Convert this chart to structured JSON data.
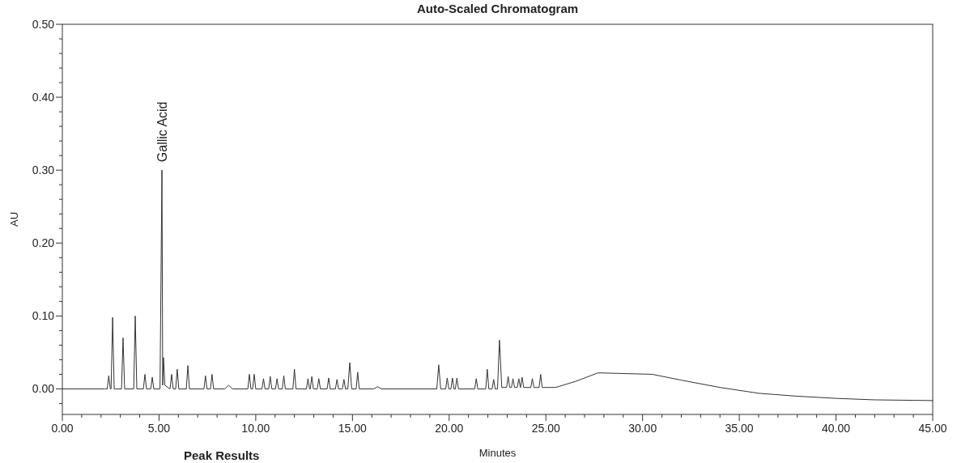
{
  "chart_data": {
    "type": "line",
    "title": "Auto-Scaled Chromatogram",
    "xlabel": "Minutes",
    "ylabel": "AU",
    "annotations": [
      {
        "text": "Gallic Acid",
        "x": 5.15,
        "y": 0.3
      },
      "Peak Results"
    ],
    "xlim": [
      0,
      45
    ],
    "ylim": [
      -0.035,
      0.5
    ],
    "xticks": [
      {
        "value": 0,
        "label": "0.00"
      },
      {
        "value": 1,
        "label": null
      },
      {
        "value": 2,
        "label": null
      },
      {
        "value": 3,
        "label": null
      },
      {
        "value": 4,
        "label": null
      },
      {
        "value": 5,
        "label": "5.00"
      },
      {
        "value": 6,
        "label": null
      },
      {
        "value": 7,
        "label": null
      },
      {
        "value": 8,
        "label": null
      },
      {
        "value": 9,
        "label": null
      },
      {
        "value": 10,
        "label": "10.00"
      },
      {
        "value": 11,
        "label": null
      },
      {
        "value": 12,
        "label": null
      },
      {
        "value": 13,
        "label": null
      },
      {
        "value": 14,
        "label": null
      },
      {
        "value": 15,
        "label": "15.00"
      },
      {
        "value": 16,
        "label": null
      },
      {
        "value": 17,
        "label": null
      },
      {
        "value": 18,
        "label": null
      },
      {
        "value": 19,
        "label": null
      },
      {
        "value": 20,
        "label": "20.00"
      },
      {
        "value": 21,
        "label": null
      },
      {
        "value": 22,
        "label": null
      },
      {
        "value": 23,
        "label": null
      },
      {
        "value": 24,
        "label": null
      },
      {
        "value": 25,
        "label": "25.00"
      },
      {
        "value": 26,
        "label": null
      },
      {
        "value": 27,
        "label": null
      },
      {
        "value": 28,
        "label": null
      },
      {
        "value": 29,
        "label": null
      },
      {
        "value": 30,
        "label": "30.00"
      },
      {
        "value": 31,
        "label": null
      },
      {
        "value": 32,
        "label": null
      },
      {
        "value": 33,
        "label": null
      },
      {
        "value": 34,
        "label": null
      },
      {
        "value": 35,
        "label": "35.00"
      },
      {
        "value": 36,
        "label": null
      },
      {
        "value": 37,
        "label": null
      },
      {
        "value": 38,
        "label": null
      },
      {
        "value": 39,
        "label": null
      },
      {
        "value": 40,
        "label": "40.00"
      },
      {
        "value": 41,
        "label": null
      },
      {
        "value": 42,
        "label": null
      },
      {
        "value": 43,
        "label": null
      },
      {
        "value": 44,
        "label": null
      },
      {
        "value": 45,
        "label": "45.00"
      }
    ],
    "yticks": [
      {
        "value": -0.02,
        "label": null
      },
      {
        "value": 0,
        "label": "0.00"
      },
      {
        "value": 0.02,
        "label": null
      },
      {
        "value": 0.04,
        "label": null
      },
      {
        "value": 0.06,
        "label": null
      },
      {
        "value": 0.08,
        "label": null
      },
      {
        "value": 0.1,
        "label": "0.10"
      },
      {
        "value": 0.12,
        "label": null
      },
      {
        "value": 0.14,
        "label": null
      },
      {
        "value": 0.16,
        "label": null
      },
      {
        "value": 0.18,
        "label": null
      },
      {
        "value": 0.2,
        "label": "0.20"
      },
      {
        "value": 0.22,
        "label": null
      },
      {
        "value": 0.24,
        "label": null
      },
      {
        "value": 0.26,
        "label": null
      },
      {
        "value": 0.28,
        "label": null
      },
      {
        "value": 0.3,
        "label": "0.30"
      },
      {
        "value": 0.32,
        "label": null
      },
      {
        "value": 0.34,
        "label": null
      },
      {
        "value": 0.36,
        "label": null
      },
      {
        "value": 0.38,
        "label": null
      },
      {
        "value": 0.4,
        "label": "0.40"
      },
      {
        "value": 0.42,
        "label": null
      },
      {
        "value": 0.44,
        "label": null
      },
      {
        "value": 0.46,
        "label": null
      },
      {
        "value": 0.48,
        "label": null
      },
      {
        "value": 0.5,
        "label": "0.50"
      }
    ],
    "series": [
      {
        "color": "#333333",
        "x": [
          0,
          2.2,
          2.32,
          2.4,
          2.48,
          2.52,
          2.6,
          2.68,
          3.06,
          3.14,
          3.22,
          3.69,
          3.77,
          3.85,
          4.19,
          4.27,
          4.35,
          4.57,
          4.65,
          4.73,
          5.05,
          5.15,
          5.19,
          5.23,
          5.3,
          5.57,
          5.65,
          5.73,
          5.86,
          5.94,
          6.02,
          6.41,
          6.49,
          6.57,
          7.32,
          7.4,
          7.48,
          7.66,
          7.74,
          7.82,
          8.4,
          8.6,
          8.8,
          9.59,
          9.67,
          9.75,
          9.84,
          9.92,
          10.0,
          10.32,
          10.4,
          10.48,
          10.67,
          10.75,
          10.83,
          11.02,
          11.1,
          11.18,
          11.37,
          11.45,
          11.53,
          11.92,
          12.0,
          12.08,
          12.62,
          12.7,
          12.78,
          12.82,
          12.9,
          12.98,
          13.18,
          13.26,
          13.34,
          13.69,
          13.77,
          13.85,
          14.12,
          14.2,
          14.28,
          14.48,
          14.56,
          14.64,
          14.76,
          14.86,
          14.96,
          15.19,
          15.27,
          15.35,
          16.1,
          16.3,
          16.5,
          19.36,
          19.46,
          19.56,
          19.82,
          19.9,
          19.98,
          20.09,
          20.17,
          20.25,
          20.32,
          20.4,
          20.48,
          21.32,
          21.4,
          21.48,
          21.89,
          21.97,
          22.05,
          22.22,
          22.3,
          22.38,
          22.5,
          22.6,
          22.72,
          22.97,
          23.05,
          23.13,
          23.22,
          23.3,
          23.38,
          23.52,
          23.6,
          23.68,
          23.69,
          23.77,
          23.85,
          24.22,
          24.3,
          24.38,
          24.65,
          24.73,
          24.81,
          25.5,
          26.5,
          27.7,
          30.5,
          32,
          34,
          36,
          38,
          40,
          42,
          45
        ],
        "values": [
          0,
          0,
          0,
          0.018,
          0,
          0,
          0.098,
          0,
          0,
          0.07,
          0,
          0,
          0.1,
          0,
          0,
          0.02,
          0,
          0,
          0.016,
          0,
          0,
          0.3,
          0.005,
          0.043,
          0.005,
          0,
          0.02,
          0,
          0,
          0.027,
          0,
          0,
          0.032,
          0,
          0,
          0.018,
          0,
          0,
          0.02,
          0,
          0,
          0.005,
          0,
          0,
          0.02,
          0,
          0,
          0.02,
          0,
          0,
          0.014,
          0,
          0,
          0.017,
          0,
          0,
          0.014,
          0,
          0,
          0.018,
          0,
          0,
          0.027,
          0,
          0,
          0.014,
          0,
          0,
          0.017,
          0,
          0,
          0.014,
          0,
          0,
          0.015,
          0,
          0,
          0.013,
          0,
          0,
          0.013,
          0,
          0,
          0.036,
          0,
          0,
          0.023,
          0,
          0,
          0.003,
          0,
          0,
          0.033,
          0,
          0,
          0.015,
          0,
          0,
          0.015,
          0,
          0,
          0.015,
          0,
          0,
          0.014,
          0,
          0,
          0.027,
          0,
          0,
          0.013,
          0,
          0,
          0.067,
          0.002,
          0.002,
          0.017,
          0.002,
          0.002,
          0.014,
          0.002,
          0.002,
          0.014,
          0.002,
          0.002,
          0.016,
          0.002,
          0.002,
          0.014,
          0.002,
          0.002,
          0.02,
          0.002,
          0.002,
          0.01,
          0.022,
          0.02,
          0.012,
          0.002,
          -0.006,
          -0.01,
          -0.013,
          -0.015,
          -0.016
        ]
      }
    ]
  }
}
